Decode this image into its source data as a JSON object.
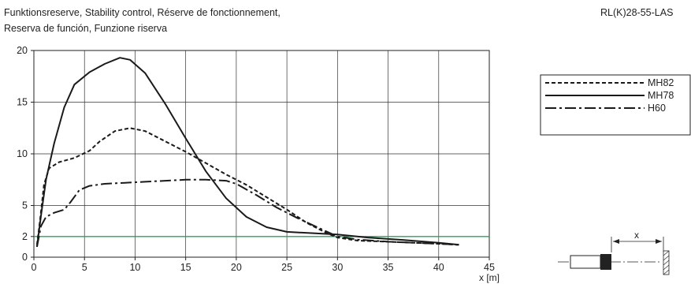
{
  "header": {
    "title_line1": "Funktionsreserve, Stability control, Réserve de fonctionnement,",
    "title_line2": "Reserva de función, Funzione riserva",
    "model": "RL(K)28-55-LAS"
  },
  "chart_data": {
    "type": "line",
    "xlabel": "x [m]",
    "ylabel": "",
    "xlim": [
      0,
      45
    ],
    "ylim": [
      0,
      20
    ],
    "xticks": [
      0,
      5,
      10,
      15,
      20,
      25,
      30,
      35,
      40,
      45
    ],
    "yticks": [
      0,
      2,
      5,
      10,
      15,
      20
    ],
    "grid": true,
    "legend_position": "top-right",
    "series": [
      {
        "name": "MH82",
        "style": "dashed",
        "color": "#1a1a1a",
        "points": [
          [
            0.3,
            1.2
          ],
          [
            0.6,
            3.5
          ],
          [
            1,
            7
          ],
          [
            1.5,
            8.6
          ],
          [
            2.5,
            9.2
          ],
          [
            4,
            9.6
          ],
          [
            5.5,
            10.3
          ],
          [
            6.5,
            11.2
          ],
          [
            8,
            12.2
          ],
          [
            9.5,
            12.5
          ],
          [
            11,
            12.2
          ],
          [
            13,
            11.2
          ],
          [
            15,
            10.2
          ],
          [
            17,
            9.1
          ],
          [
            19,
            8.0
          ],
          [
            21,
            7.0
          ],
          [
            23,
            5.8
          ],
          [
            25,
            4.6
          ],
          [
            27,
            3.3
          ],
          [
            29,
            2.3
          ],
          [
            30,
            1.9
          ],
          [
            32,
            1.6
          ],
          [
            35,
            1.5
          ],
          [
            40,
            1.3
          ],
          [
            42,
            1.2
          ]
        ]
      },
      {
        "name": "MH78",
        "style": "solid",
        "color": "#1a1a1a",
        "points": [
          [
            0.3,
            1.0
          ],
          [
            0.7,
            4
          ],
          [
            1.2,
            7.5
          ],
          [
            2,
            11
          ],
          [
            3,
            14.5
          ],
          [
            4,
            16.7
          ],
          [
            5.5,
            17.9
          ],
          [
            7,
            18.7
          ],
          [
            8.5,
            19.3
          ],
          [
            9.5,
            19.1
          ],
          [
            11,
            17.8
          ],
          [
            13,
            14.8
          ],
          [
            15,
            11.5
          ],
          [
            17,
            8.3
          ],
          [
            19,
            5.7
          ],
          [
            21,
            3.9
          ],
          [
            23,
            2.9
          ],
          [
            25,
            2.45
          ],
          [
            28,
            2.3
          ],
          [
            30,
            2.2
          ],
          [
            33,
            1.9
          ],
          [
            36,
            1.7
          ],
          [
            40,
            1.4
          ],
          [
            42,
            1.2
          ]
        ]
      },
      {
        "name": "H60",
        "style": "dash-dot",
        "color": "#1a1a1a",
        "points": [
          [
            0.3,
            1.0
          ],
          [
            0.7,
            3
          ],
          [
            1.2,
            3.9
          ],
          [
            2,
            4.3
          ],
          [
            3,
            4.6
          ],
          [
            3.6,
            5.3
          ],
          [
            4.5,
            6.5
          ],
          [
            5.5,
            6.9
          ],
          [
            7,
            7.1
          ],
          [
            9,
            7.2
          ],
          [
            11,
            7.3
          ],
          [
            13,
            7.4
          ],
          [
            15,
            7.5
          ],
          [
            17,
            7.5
          ],
          [
            19,
            7.4
          ],
          [
            20,
            7.1
          ],
          [
            22,
            6.0
          ],
          [
            24,
            4.8
          ],
          [
            26,
            3.8
          ],
          [
            28,
            2.9
          ],
          [
            30,
            2.0
          ],
          [
            32,
            1.7
          ],
          [
            35,
            1.5
          ],
          [
            40,
            1.3
          ],
          [
            42,
            1.2
          ]
        ]
      }
    ],
    "reference_line": {
      "y": 2,
      "color": "#2aa15a"
    }
  },
  "diagram": {
    "distance_label": "x"
  }
}
